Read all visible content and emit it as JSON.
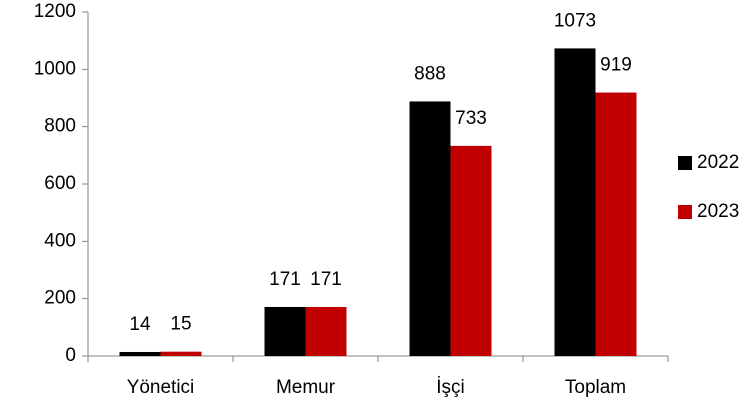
{
  "chart_data": {
    "type": "bar",
    "categories": [
      "Yönetici",
      "Memur",
      "İşçi",
      "Toplam"
    ],
    "series": [
      {
        "name": "2022",
        "color": "#000000",
        "values": [
          14,
          171,
          888,
          1073
        ]
      },
      {
        "name": "2023",
        "color": "#c00000",
        "values": [
          15,
          171,
          733,
          919
        ]
      }
    ],
    "ylim": [
      0,
      1200
    ],
    "yticks": [
      0,
      200,
      400,
      600,
      800,
      1000,
      1200
    ],
    "grid": false,
    "legend": "right"
  }
}
